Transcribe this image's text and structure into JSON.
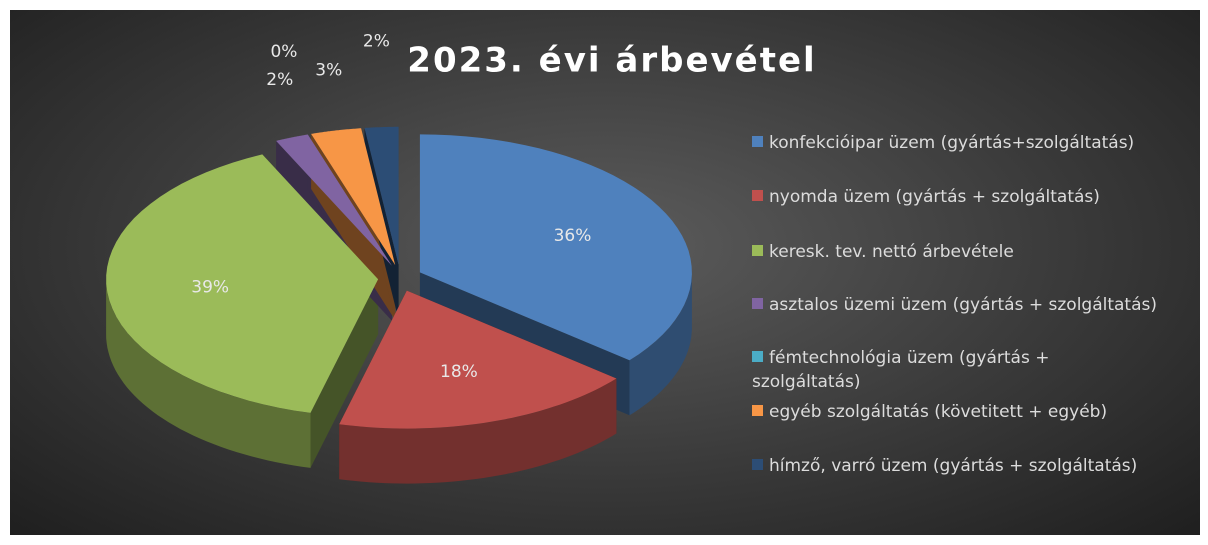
{
  "chart_data": {
    "type": "pie",
    "title": "2023. évi árbevétel",
    "categories": [
      "konfekcióipar üzem (gyártás+szolgáltatás)",
      "nyomda üzem (gyártás + szolgáltatás)",
      "keresk. tev. nettó árbevétele",
      "asztalos üzemi üzem (gyártás + szolgáltatás)",
      "fémtechnológia üzem (gyártás + szolgáltatás)",
      "egyéb szolgáltatás (követitett + egyéb)",
      "hímző, varró üzem (gyártás + szolgáltatás)"
    ],
    "values": [
      36,
      18,
      39,
      2,
      0,
      3,
      2
    ],
    "value_labels": [
      "36%",
      "18%",
      "39%",
      "2%",
      "0%",
      "3%",
      "2%"
    ],
    "colors": [
      "#4f81bd",
      "#c0504d",
      "#9bbb59",
      "#8064a2",
      "#4bacc6",
      "#f79646",
      "#2c4d75"
    ],
    "legend": "right"
  }
}
